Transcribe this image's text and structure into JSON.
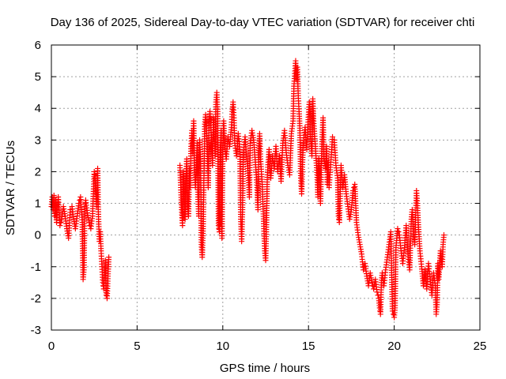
{
  "chart_data": {
    "type": "scatter",
    "title": "Day 136 of 2025, Sidereal Day-to-day VTEC variation (SDTVAR) for receiver chti",
    "xlabel": "GPS time / hours",
    "ylabel": "SDTVAR / TECUs",
    "xlim": [
      0,
      25
    ],
    "ylim": [
      -3,
      6
    ],
    "xticks": [
      0,
      5,
      10,
      15,
      20,
      25
    ],
    "xtick_labels": [
      "0",
      "5",
      "10",
      "15",
      "20",
      "25"
    ],
    "yticks": [
      -3,
      -2,
      -1,
      0,
      1,
      2,
      3,
      4,
      5,
      6
    ],
    "ytick_labels": [
      "-3",
      "-2",
      "-1",
      "0",
      "1",
      "2",
      "3",
      "4",
      "5",
      "6"
    ],
    "grid": true,
    "marker": "plus",
    "series": [
      {
        "name": "SDTVAR",
        "color": "#ff0000",
        "points": [
          [
            0.0,
            0.9
          ],
          [
            0.05,
            1.2
          ],
          [
            0.1,
            0.8
          ],
          [
            0.15,
            1.25
          ],
          [
            0.2,
            0.6
          ],
          [
            0.25,
            1.1
          ],
          [
            0.3,
            0.4
          ],
          [
            0.35,
            0.9
          ],
          [
            0.4,
            1.2
          ],
          [
            0.45,
            0.7
          ],
          [
            0.5,
            0.3
          ],
          [
            0.6,
            0.5
          ],
          [
            0.7,
            0.9
          ],
          [
            0.8,
            0.6
          ],
          [
            0.9,
            0.2
          ],
          [
            1.0,
            -0.1
          ],
          [
            1.05,
            0.3
          ],
          [
            1.1,
            0.8
          ],
          [
            1.2,
            0.9
          ],
          [
            1.3,
            0.5
          ],
          [
            1.4,
            0.2
          ],
          [
            1.5,
            0.6
          ],
          [
            1.6,
            1.0
          ],
          [
            1.7,
            1.2
          ],
          [
            1.75,
            0.8
          ],
          [
            1.8,
            0.4
          ],
          [
            1.85,
            -1.4
          ],
          [
            1.9,
            -1.1
          ],
          [
            1.95,
            0.9
          ],
          [
            2.0,
            1.1
          ],
          [
            2.1,
            0.7
          ],
          [
            2.2,
            0.4
          ],
          [
            2.3,
            0.2
          ],
          [
            2.4,
            0.6
          ],
          [
            2.5,
            2.0
          ],
          [
            2.55,
            1.8
          ],
          [
            2.6,
            1.4
          ],
          [
            2.65,
            0.9
          ],
          [
            2.7,
            2.1
          ],
          [
            2.72,
            1.2
          ],
          [
            2.75,
            0.5
          ],
          [
            2.8,
            -0.2
          ],
          [
            2.85,
            0.1
          ],
          [
            2.9,
            -0.5
          ],
          [
            2.95,
            -1.0
          ],
          [
            3.0,
            -1.5
          ],
          [
            3.05,
            -1.7
          ],
          [
            3.1,
            -1.2
          ],
          [
            3.15,
            -0.8
          ],
          [
            3.2,
            -1.9
          ],
          [
            3.25,
            -2.0
          ],
          [
            3.3,
            -1.3
          ],
          [
            3.35,
            -0.7
          ],
          [
            7.5,
            2.2
          ],
          [
            7.55,
            1.5
          ],
          [
            7.6,
            0.8
          ],
          [
            7.65,
            0.3
          ],
          [
            7.7,
            2.0
          ],
          [
            7.75,
            1.2
          ],
          [
            7.8,
            0.5
          ],
          [
            7.85,
            1.8
          ],
          [
            7.9,
            2.4
          ],
          [
            7.95,
            1.0
          ],
          [
            8.0,
            0.6
          ],
          [
            8.05,
            2.1
          ],
          [
            8.1,
            1.5
          ],
          [
            8.15,
            2.8
          ],
          [
            8.2,
            3.3
          ],
          [
            8.25,
            2.6
          ],
          [
            8.3,
            3.6
          ],
          [
            8.35,
            2.2
          ],
          [
            8.4,
            1.5
          ],
          [
            8.45,
            2.0
          ],
          [
            8.5,
            2.9
          ],
          [
            8.55,
            1.2
          ],
          [
            8.6,
            0.6
          ],
          [
            8.65,
            3.0
          ],
          [
            8.7,
            2.4
          ],
          [
            8.75,
            -0.3
          ],
          [
            8.8,
            -0.7
          ],
          [
            8.85,
            0.2
          ],
          [
            8.9,
            1.8
          ],
          [
            8.95,
            3.5
          ],
          [
            9.0,
            3.8
          ],
          [
            9.05,
            3.3
          ],
          [
            9.1,
            2.8
          ],
          [
            9.15,
            1.5
          ],
          [
            9.2,
            3.6
          ],
          [
            9.25,
            3.9
          ],
          [
            9.3,
            3.4
          ],
          [
            9.35,
            2.9
          ],
          [
            9.4,
            2.2
          ],
          [
            9.45,
            3.7
          ],
          [
            9.5,
            3.1
          ],
          [
            9.55,
            2.5
          ],
          [
            9.6,
            4.2
          ],
          [
            9.65,
            4.5
          ],
          [
            9.7,
            3.9
          ],
          [
            9.75,
            0.3
          ],
          [
            9.8,
            0.1
          ],
          [
            9.85,
            2.6
          ],
          [
            9.9,
            3.3
          ],
          [
            9.95,
            -0.1
          ],
          [
            10.0,
            2.7
          ],
          [
            10.05,
            3.6
          ],
          [
            10.1,
            2.9
          ],
          [
            10.2,
            2.4
          ],
          [
            10.3,
            3.1
          ],
          [
            10.4,
            2.8
          ],
          [
            10.5,
            3.4
          ],
          [
            10.55,
            3.9
          ],
          [
            10.6,
            4.2
          ],
          [
            10.65,
            3.7
          ],
          [
            10.7,
            2.9
          ],
          [
            10.8,
            2.5
          ],
          [
            10.9,
            3.2
          ],
          [
            11.0,
            2.7
          ],
          [
            11.05,
            0.5
          ],
          [
            11.1,
            -0.2
          ],
          [
            11.15,
            0.8
          ],
          [
            11.2,
            2.6
          ],
          [
            11.3,
            3.1
          ],
          [
            11.4,
            2.4
          ],
          [
            11.5,
            1.8
          ],
          [
            11.55,
            1.2
          ],
          [
            11.6,
            2.9
          ],
          [
            11.7,
            3.3
          ],
          [
            11.8,
            3.0
          ],
          [
            11.9,
            2.3
          ],
          [
            12.0,
            1.5
          ],
          [
            12.05,
            0.8
          ],
          [
            12.1,
            2.6
          ],
          [
            12.15,
            3.2
          ],
          [
            12.2,
            2.4
          ],
          [
            12.3,
            1.6
          ],
          [
            12.4,
            0.2
          ],
          [
            12.45,
            -0.5
          ],
          [
            12.5,
            -0.8
          ],
          [
            12.55,
            0.4
          ],
          [
            12.6,
            1.9
          ],
          [
            12.7,
            2.7
          ],
          [
            12.8,
            1.8
          ],
          [
            12.9,
            2.5
          ],
          [
            13.0,
            2.1
          ],
          [
            13.1,
            2.8
          ],
          [
            13.2,
            2.0
          ],
          [
            13.3,
            2.5
          ],
          [
            13.4,
            1.7
          ],
          [
            13.5,
            2.9
          ],
          [
            13.6,
            3.3
          ],
          [
            13.7,
            2.6
          ],
          [
            13.8,
            2.2
          ],
          [
            13.9,
            1.9
          ],
          [
            14.0,
            3.2
          ],
          [
            14.1,
            3.6
          ],
          [
            14.15,
            4.7
          ],
          [
            14.2,
            5.1
          ],
          [
            14.25,
            5.5
          ],
          [
            14.3,
            4.9
          ],
          [
            14.35,
            5.3
          ],
          [
            14.4,
            4.4
          ],
          [
            14.45,
            3.9
          ],
          [
            14.5,
            3.3
          ],
          [
            14.55,
            1.8
          ],
          [
            14.6,
            1.3
          ],
          [
            14.65,
            2.3
          ],
          [
            14.7,
            2.9
          ],
          [
            14.8,
            3.4
          ],
          [
            14.9,
            2.7
          ],
          [
            15.0,
            3.8
          ],
          [
            15.05,
            4.2
          ],
          [
            15.1,
            3.2
          ],
          [
            15.2,
            2.5
          ],
          [
            15.25,
            4.3
          ],
          [
            15.3,
            3.6
          ],
          [
            15.4,
            2.8
          ],
          [
            15.5,
            1.9
          ],
          [
            15.55,
            1.2
          ],
          [
            15.6,
            2.4
          ],
          [
            15.65,
            1.6
          ],
          [
            15.7,
            1.0
          ],
          [
            15.75,
            2.2
          ],
          [
            15.8,
            3.1
          ],
          [
            15.85,
            3.7
          ],
          [
            15.9,
            2.4
          ],
          [
            16.0,
            2.1
          ],
          [
            16.05,
            2.8
          ],
          [
            16.1,
            1.6
          ],
          [
            16.15,
            2.3
          ],
          [
            16.2,
            1.5
          ],
          [
            16.3,
            2.3
          ],
          [
            16.4,
            3.1
          ],
          [
            16.5,
            3.0
          ],
          [
            16.6,
            2.2
          ],
          [
            16.7,
            1.8
          ],
          [
            16.75,
            0.6
          ],
          [
            16.8,
            0.4
          ],
          [
            16.9,
            2.2
          ],
          [
            17.0,
            1.5
          ],
          [
            17.1,
            1.9
          ],
          [
            17.2,
            1.3
          ],
          [
            17.3,
            0.9
          ],
          [
            17.4,
            0.5
          ],
          [
            17.5,
            0.8
          ],
          [
            17.6,
            1.4
          ],
          [
            17.7,
            1.6
          ],
          [
            17.8,
            0.4
          ],
          [
            17.9,
            0.0
          ],
          [
            18.0,
            -0.3
          ],
          [
            18.1,
            -0.6
          ],
          [
            18.2,
            -1.1
          ],
          [
            18.3,
            -0.9
          ],
          [
            18.4,
            -1.3
          ],
          [
            18.5,
            -1.6
          ],
          [
            18.6,
            -1.2
          ],
          [
            18.7,
            -1.5
          ],
          [
            18.8,
            -1.7
          ],
          [
            18.9,
            -1.4
          ],
          [
            19.0,
            -1.8
          ],
          [
            19.1,
            -2.0
          ],
          [
            19.15,
            -2.3
          ],
          [
            19.2,
            -2.5
          ],
          [
            19.25,
            -1.5
          ],
          [
            19.3,
            -1.2
          ],
          [
            19.4,
            -1.6
          ],
          [
            19.5,
            -1.1
          ],
          [
            19.6,
            -0.7
          ],
          [
            19.7,
            -0.3
          ],
          [
            19.8,
            0.1
          ],
          [
            19.9,
            -2.4
          ],
          [
            20.0,
            -2.6
          ],
          [
            20.05,
            -2.3
          ],
          [
            20.1,
            -0.4
          ],
          [
            20.2,
            0.2
          ],
          [
            20.3,
            0.0
          ],
          [
            20.4,
            -0.5
          ],
          [
            20.5,
            -0.9
          ],
          [
            20.6,
            -0.4
          ],
          [
            20.7,
            0.3
          ],
          [
            20.8,
            -0.6
          ],
          [
            20.9,
            -1.1
          ],
          [
            21.0,
            0.5
          ],
          [
            21.05,
            0.8
          ],
          [
            21.1,
            0.2
          ],
          [
            21.2,
            -0.3
          ],
          [
            21.3,
            1.4
          ],
          [
            21.35,
            1.0
          ],
          [
            21.4,
            0.4
          ],
          [
            21.5,
            -0.5
          ],
          [
            21.6,
            -1.0
          ],
          [
            21.7,
            -1.6
          ],
          [
            21.8,
            -1.1
          ],
          [
            21.9,
            -1.7
          ],
          [
            22.0,
            -0.9
          ],
          [
            22.1,
            -1.4
          ],
          [
            22.2,
            -1.9
          ],
          [
            22.3,
            -1.2
          ],
          [
            22.4,
            -1.6
          ],
          [
            22.45,
            -2.5
          ],
          [
            22.5,
            -2.2
          ],
          [
            22.55,
            -0.9
          ],
          [
            22.6,
            -1.4
          ],
          [
            22.7,
            -0.5
          ],
          [
            22.8,
            -1.0
          ],
          [
            22.85,
            -0.3
          ],
          [
            22.9,
            0.0
          ]
        ]
      }
    ]
  }
}
